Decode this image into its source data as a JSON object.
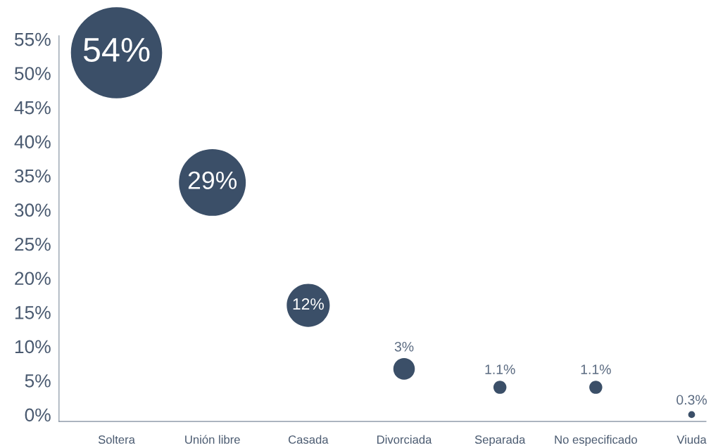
{
  "chart_data": {
    "type": "bubble",
    "categories": [
      "Soltera",
      "Unión libre",
      "Casada",
      "Divorciada",
      "Separada",
      "No especificado",
      "Viuda"
    ],
    "values": [
      53,
      34,
      16,
      6.7,
      4,
      4,
      0
    ],
    "sizes": [
      54,
      29,
      12,
      3,
      1.1,
      1.1,
      0.3
    ],
    "value_labels": [
      "54%",
      "29%",
      "12%",
      "3%",
      "1.1%",
      "1.1%",
      "0.3%"
    ],
    "color": "#3b4f68",
    "ylim": [
      -1,
      55.5
    ],
    "yticks": [
      {
        "value": 0,
        "label": "0%"
      },
      {
        "value": 5,
        "label": "5%"
      },
      {
        "value": 10,
        "label": "10%"
      },
      {
        "value": 15,
        "label": "15%"
      },
      {
        "value": 20,
        "label": "20%"
      },
      {
        "value": 25,
        "label": "25%"
      },
      {
        "value": 30,
        "label": "30%"
      },
      {
        "value": 35,
        "label": "35%"
      },
      {
        "value": 40,
        "label": "40%"
      },
      {
        "value": 45,
        "label": "45%"
      },
      {
        "value": 50,
        "label": "50%"
      },
      {
        "value": 55,
        "label": "55%"
      }
    ],
    "grid": false,
    "legend": false
  }
}
